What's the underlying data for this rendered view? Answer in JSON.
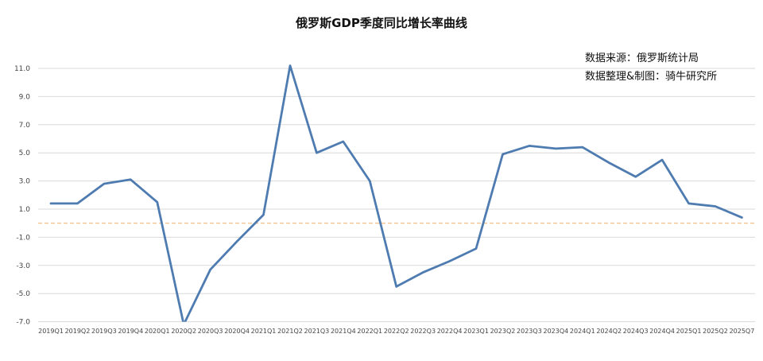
{
  "chart_data": {
    "type": "line",
    "title": "俄罗斯GDP季度同比增长率曲线",
    "annotations": [
      "数据来源：俄罗斯统计局",
      "数据整理&制图：骑牛研究所"
    ],
    "xlabel": "",
    "ylabel": "",
    "categories": [
      "2019Q1",
      "2019Q2",
      "2019Q3",
      "2019Q4",
      "2020Q1",
      "2020Q2",
      "2020Q3",
      "2020Q4",
      "2021Q1",
      "2021Q2",
      "2021Q3",
      "2021Q4",
      "2022Q1",
      "2022Q2",
      "2022Q3",
      "2022Q4",
      "2023Q1",
      "2023Q2",
      "2023Q3",
      "2023Q4",
      "2024Q1",
      "2024Q2",
      "2024Q3",
      "2024Q4",
      "2025Q1",
      "2025Q2",
      "2025Q7"
    ],
    "series": [
      {
        "values": [
          1.4,
          1.4,
          2.8,
          3.1,
          1.5,
          -7.2,
          -3.3,
          -1.3,
          0.6,
          11.2,
          5.0,
          5.8,
          3.0,
          -4.5,
          -3.5,
          -2.7,
          -1.8,
          4.9,
          5.5,
          5.3,
          5.4,
          4.3,
          3.3,
          4.5,
          1.4,
          1.2,
          0.4
        ],
        "color": "#4e7bb0"
      }
    ],
    "reference_line": {
      "y": 0,
      "color": "#f2b77f",
      "style": "dashed"
    },
    "y_ticks": [
      "11.0",
      "9.0",
      "7.0",
      "5.0",
      "3.0",
      "1.0",
      "-1.0",
      "-3.0",
      "-5.0",
      "-7.0"
    ],
    "ylim": [
      -7,
      12
    ],
    "grid": true
  }
}
